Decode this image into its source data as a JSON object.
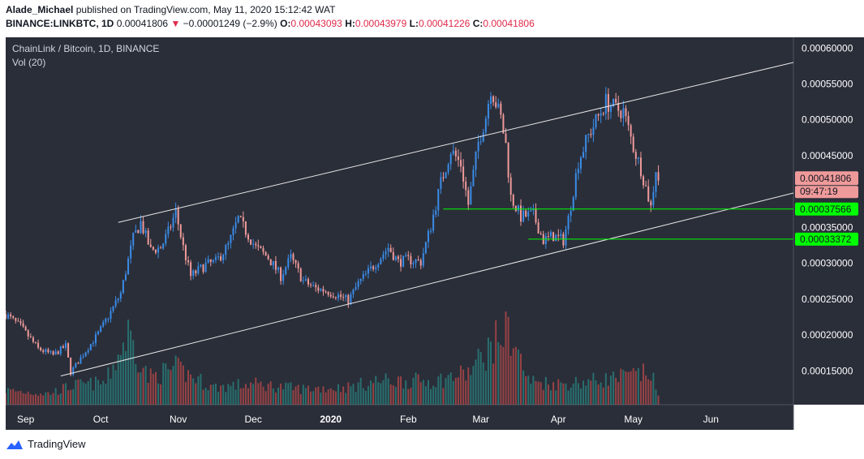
{
  "header": {
    "author": "Alade_Michael",
    "published_text": "published on TradingView.com, May 11, 2020 15:12:42 WAT",
    "symbol": "BINANCE:LINKBTC, 1D",
    "last": "0.00041806",
    "change": "−0.00001249 (−2.9%)",
    "o_label": "O:",
    "o_value": "0.00043093",
    "h_label": "H:",
    "h_value": "0.00043979",
    "l_label": "L:",
    "l_value": "0.00041226",
    "c_label": "C:",
    "c_value": "0.00041806"
  },
  "legend": {
    "title": "ChainLink / Bitcoin, 1D, BINANCE",
    "volume": "Vol (20)"
  },
  "price_labels": {
    "current": "0.00041806",
    "countdown": "09:47:19",
    "support_upper": "0.00037566",
    "support_lower": "0.00033372"
  },
  "footer": {
    "brand": "TradingView"
  },
  "colors": {
    "background": "#2a2e39",
    "up": "#3a8ce8",
    "down": "#ef9a9a",
    "vol_up": "#26a69a",
    "vol_down": "#ef5350",
    "support": "#00ff00",
    "channel": "#e6e6e6",
    "axis_text": "#ffffff"
  },
  "chart_data": {
    "type": "candlestick",
    "title": "ChainLink / Bitcoin, 1D, BINANCE",
    "x_ticks": [
      "Sep",
      "Oct",
      "Nov",
      "Dec",
      "2020",
      "Feb",
      "Mar",
      "Apr",
      "May",
      "Jun"
    ],
    "x_tick_dates": [
      "2019-09-01",
      "2019-10-01",
      "2019-11-01",
      "2019-12-01",
      "2020-01-01",
      "2020-02-01",
      "2020-03-01",
      "2020-04-01",
      "2020-05-01",
      "2020-06-01"
    ],
    "y_ticks": [
      "0.00015000",
      "0.00020000",
      "0.00025000",
      "0.00030000",
      "0.00035000",
      "0.00040000",
      "0.00045000",
      "0.00050000",
      "0.00055000",
      "0.00060000"
    ],
    "y_tick_values": [
      0.00015,
      0.0002,
      0.00025,
      0.0003,
      0.00035,
      0.0004,
      0.00045,
      0.0005,
      0.00055,
      0.0006
    ],
    "ylim": [
      0.000103,
      0.000615
    ],
    "xlim": [
      "2019-08-24",
      "2020-07-04"
    ],
    "close_path": [
      [
        "2019-08-24",
        0.000229
      ],
      [
        "2019-08-30",
        0.000212
      ],
      [
        "2019-09-06",
        0.000181
      ],
      [
        "2019-09-12",
        0.000172
      ],
      [
        "2019-09-17",
        0.000185
      ],
      [
        "2019-09-19",
        0.000148
      ],
      [
        "2019-09-25",
        0.000178
      ],
      [
        "2019-09-30",
        0.000202
      ],
      [
        "2019-10-05",
        0.000232
      ],
      [
        "2019-10-09",
        0.000258
      ],
      [
        "2019-10-14",
        0.000335
      ],
      [
        "2019-10-17",
        0.000357
      ],
      [
        "2019-10-21",
        0.000318
      ],
      [
        "2019-10-25",
        0.000322
      ],
      [
        "2019-10-28",
        0.000343
      ],
      [
        "2019-10-31",
        0.000372
      ],
      [
        "2019-11-03",
        0.000322
      ],
      [
        "2019-11-06",
        0.000282
      ],
      [
        "2019-11-12",
        0.000298
      ],
      [
        "2019-11-16",
        0.000302
      ],
      [
        "2019-11-21",
        0.000325
      ],
      [
        "2019-11-25",
        0.000362
      ],
      [
        "2019-11-28",
        0.000345
      ],
      [
        "2019-12-02",
        0.000322
      ],
      [
        "2019-12-07",
        0.000308
      ],
      [
        "2019-12-12",
        0.000282
      ],
      [
        "2019-12-16",
        0.000308
      ],
      [
        "2019-12-21",
        0.000275
      ],
      [
        "2019-12-26",
        0.000265
      ],
      [
        "2019-12-30",
        0.000262
      ],
      [
        "2020-01-04",
        0.000255
      ],
      [
        "2020-01-08",
        0.000248
      ],
      [
        "2020-01-12",
        0.000272
      ],
      [
        "2020-01-16",
        0.000288
      ],
      [
        "2020-01-20",
        0.000305
      ],
      [
        "2020-01-24",
        0.000322
      ],
      [
        "2020-01-28",
        0.000302
      ],
      [
        "2020-02-01",
        0.000305
      ],
      [
        "2020-02-06",
        0.000302
      ],
      [
        "2020-02-10",
        0.000352
      ],
      [
        "2020-02-14",
        0.000412
      ],
      [
        "2020-02-18",
        0.000458
      ],
      [
        "2020-02-22",
        0.000438
      ],
      [
        "2020-02-25",
        0.000382
      ],
      [
        "2020-02-29",
        0.000468
      ],
      [
        "2020-03-03",
        0.000505
      ],
      [
        "2020-03-05",
        0.000545
      ],
      [
        "2020-03-09",
        0.000502
      ],
      [
        "2020-03-11",
        0.000465
      ],
      [
        "2020-03-13",
        0.000392
      ],
      [
        "2020-03-17",
        0.000365
      ],
      [
        "2020-03-22",
        0.000368
      ],
      [
        "2020-03-26",
        0.000332
      ],
      [
        "2020-03-30",
        0.000338
      ],
      [
        "2020-04-03",
        0.000332
      ],
      [
        "2020-04-05",
        0.000362
      ],
      [
        "2020-04-09",
        0.000442
      ],
      [
        "2020-04-13",
        0.000478
      ],
      [
        "2020-04-17",
        0.000505
      ],
      [
        "2020-04-20",
        0.000525
      ],
      [
        "2020-04-24",
        0.000515
      ],
      [
        "2020-04-27",
        0.000512
      ],
      [
        "2020-05-01",
        0.000462
      ],
      [
        "2020-05-04",
        0.000432
      ],
      [
        "2020-05-07",
        0.000392
      ],
      [
        "2020-05-08",
        0.000378
      ],
      [
        "2020-05-10",
        0.000432
      ],
      [
        "2020-05-11",
        0.000418
      ]
    ],
    "volume_relative": [
      [
        "2019-08-24",
        0.18
      ],
      [
        "2019-09-10",
        0.14
      ],
      [
        "2019-09-20",
        0.24
      ],
      [
        "2019-10-03",
        0.28
      ],
      [
        "2019-10-12",
        0.9
      ],
      [
        "2019-10-20",
        0.34
      ],
      [
        "2019-10-31",
        0.46
      ],
      [
        "2019-11-15",
        0.22
      ],
      [
        "2019-12-01",
        0.26
      ],
      [
        "2019-12-20",
        0.2
      ],
      [
        "2020-01-08",
        0.22
      ],
      [
        "2020-01-20",
        0.3
      ],
      [
        "2020-02-12",
        0.3
      ],
      [
        "2020-02-25",
        0.4
      ],
      [
        "2020-03-12",
        0.98
      ],
      [
        "2020-03-20",
        0.3
      ],
      [
        "2020-04-02",
        0.26
      ],
      [
        "2020-04-20",
        0.32
      ],
      [
        "2020-05-08",
        0.4
      ],
      [
        "2020-05-11",
        0.1
      ]
    ],
    "annotations": {
      "channel_upper": [
        [
          "2019-10-08",
          0.000357
        ],
        [
          "2020-07-04",
          0.00058
        ]
      ],
      "channel_lower": [
        [
          "2019-09-15",
          0.000143
        ],
        [
          "2020-07-04",
          0.000398
        ]
      ],
      "support_upper": {
        "value": 0.00037566,
        "from": "2020-02-15"
      },
      "support_lower": {
        "value": 0.00033372,
        "from": "2020-03-20"
      }
    },
    "last_price": 0.00041806
  }
}
